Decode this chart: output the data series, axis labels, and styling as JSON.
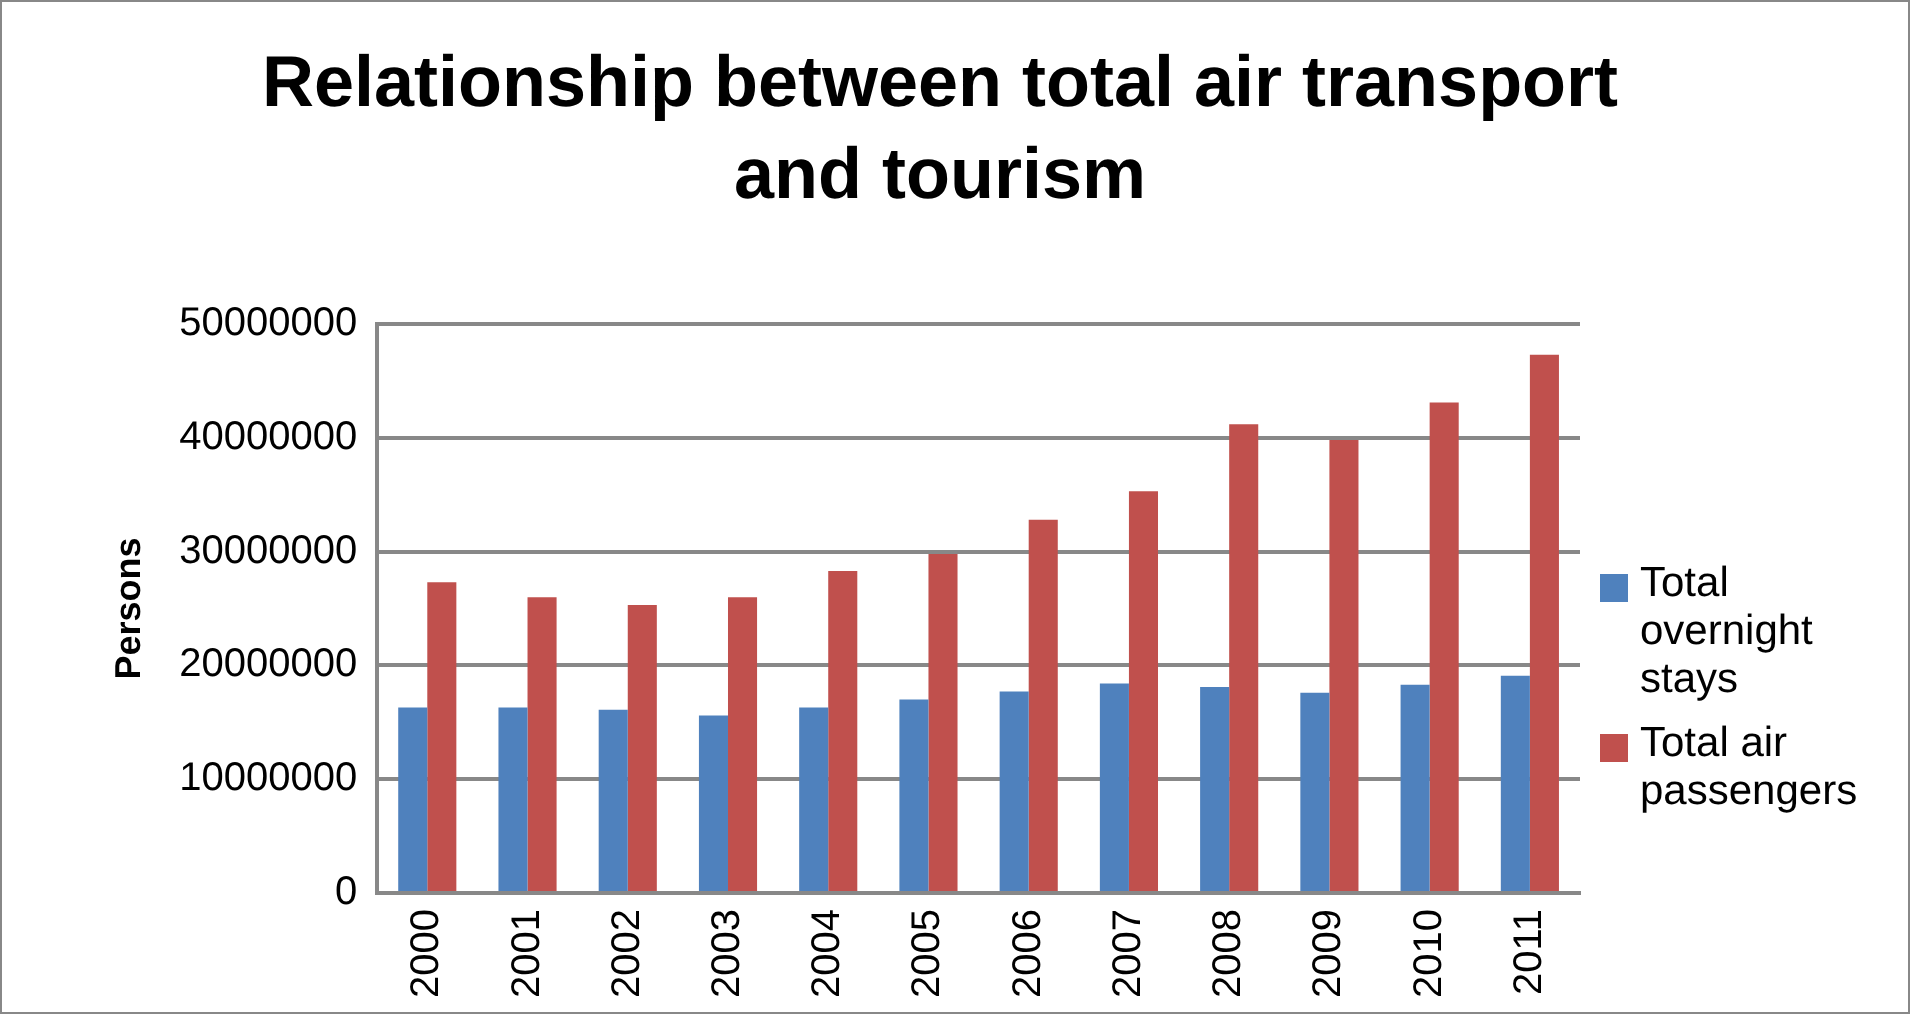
{
  "chart_data": {
    "type": "bar",
    "title": "Relationship between total air transport and tourism",
    "ylabel": "Persons",
    "categories": [
      "2000",
      "2001",
      "2002",
      "2003",
      "2004",
      "2005",
      "2006",
      "2007",
      "2008",
      "2009",
      "2010",
      "2011"
    ],
    "series": [
      {
        "name": "Total overnight stays",
        "color": "#4f81bd",
        "values": [
          16300000,
          16300000,
          16100000,
          15600000,
          16300000,
          17000000,
          17700000,
          18400000,
          18100000,
          17600000,
          18300000,
          19100000
        ]
      },
      {
        "name": "Total air passengers",
        "color": "#c0504d",
        "values": [
          27300000,
          26000000,
          25300000,
          26000000,
          28300000,
          29800000,
          32800000,
          35300000,
          41200000,
          39800000,
          43100000,
          47300000
        ]
      }
    ],
    "ylim": [
      0,
      50000000
    ],
    "yticks": [
      0,
      10000000,
      20000000,
      30000000,
      40000000,
      50000000
    ],
    "grid": "y",
    "legend": "right"
  }
}
